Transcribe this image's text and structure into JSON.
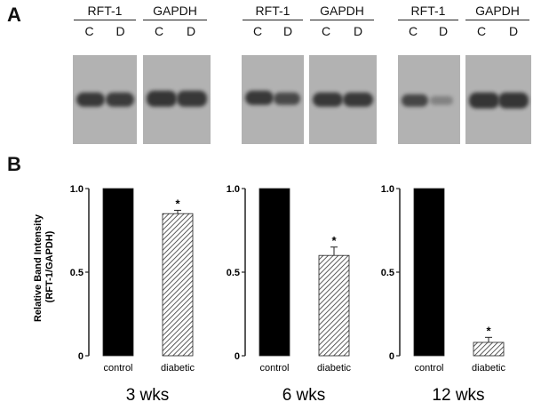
{
  "figure": {
    "panel_a_label": "A",
    "panel_b_label": "B",
    "blots": [
      {
        "genes": [
          {
            "name": "RFT-1",
            "lanes": [
              "C",
              "D"
            ],
            "band_intensity": [
              0.9,
              0.88
            ]
          },
          {
            "name": "GAPDH",
            "lanes": [
              "C",
              "D"
            ],
            "band_intensity": [
              0.92,
              0.9
            ]
          }
        ]
      },
      {
        "genes": [
          {
            "name": "RFT-1",
            "lanes": [
              "C",
              "D"
            ],
            "band_intensity": [
              0.9,
              0.78
            ]
          },
          {
            "name": "GAPDH",
            "lanes": [
              "C",
              "D"
            ],
            "band_intensity": [
              0.9,
              0.9
            ]
          }
        ]
      },
      {
        "genes": [
          {
            "name": "RFT-1",
            "lanes": [
              "C",
              "D"
            ],
            "band_intensity": [
              0.8,
              0.35
            ]
          },
          {
            "name": "GAPDH",
            "lanes": [
              "C",
              "D"
            ],
            "band_intensity": [
              0.92,
              0.92
            ]
          }
        ]
      }
    ]
  },
  "chart_data": [
    {
      "type": "bar",
      "categories": [
        "control",
        "diabetic"
      ],
      "values": [
        1.0,
        0.85
      ],
      "errors": [
        0,
        0.02
      ],
      "significance": [
        "",
        "*"
      ],
      "title": "3 wks",
      "ylabel": "Relative Band Intensity\n(RFT-1/GAPDH)",
      "ylim": [
        0,
        1.0
      ],
      "yticks": [
        "0",
        "0.5",
        "1.0"
      ],
      "bar_colors": [
        "#000000",
        "hatched"
      ]
    },
    {
      "type": "bar",
      "categories": [
        "control",
        "diabetic"
      ],
      "values": [
        1.0,
        0.6
      ],
      "errors": [
        0,
        0.05
      ],
      "significance": [
        "",
        "*"
      ],
      "title": "6 wks",
      "ylabel": "",
      "ylim": [
        0,
        1.0
      ],
      "yticks": [
        "0",
        "0.5",
        "1.0"
      ],
      "bar_colors": [
        "#000000",
        "hatched"
      ]
    },
    {
      "type": "bar",
      "categories": [
        "control",
        "diabetic"
      ],
      "values": [
        1.0,
        0.08
      ],
      "errors": [
        0,
        0.03
      ],
      "significance": [
        "",
        "*"
      ],
      "title": "12 wks",
      "ylabel": "",
      "ylim": [
        0,
        1.0
      ],
      "yticks": [
        "0",
        "0.5",
        "1.0"
      ],
      "bar_colors": [
        "#000000",
        "hatched"
      ]
    }
  ]
}
